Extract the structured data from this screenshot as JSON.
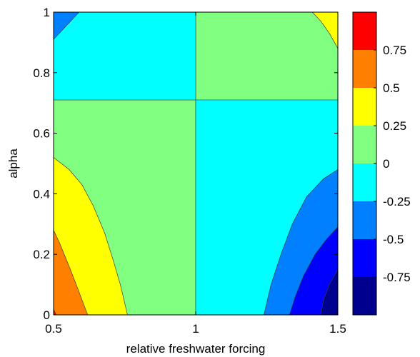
{
  "chart_data": {
    "type": "contour",
    "title": "",
    "xlabel": "relative freshwater forcing",
    "ylabel": "alpha",
    "xlim": [
      0.5,
      1.5
    ],
    "ylim": [
      0,
      1
    ],
    "xticks": [
      0.5,
      1,
      1.5
    ],
    "xtick_labels": [
      "0.5",
      "1",
      "1.5"
    ],
    "yticks": [
      0,
      0.2,
      0.4,
      0.6,
      0.8,
      1
    ],
    "ytick_labels": [
      "0",
      "0.2",
      "0.4",
      "0.6",
      "0.8",
      "1"
    ],
    "colorbar": {
      "levels": [
        -1.0,
        -0.75,
        -0.5,
        -0.25,
        0,
        0.25,
        0.5,
        0.75,
        1.0
      ],
      "tick_values": [
        -0.75,
        -0.5,
        -0.25,
        0,
        0.25,
        0.5,
        0.75
      ],
      "tick_labels": [
        "-0.75",
        "-0.5",
        "-0.25",
        "0",
        "0.25",
        "0.5",
        "0.75"
      ],
      "colors": [
        "#00008f",
        "#0000ff",
        "#0080ff",
        "#00ffff",
        "#80ff80",
        "#ffff00",
        "#ff8000",
        "#ff0000"
      ]
    },
    "regions": [
      {
        "level_range": [
          0.75,
          1.0
        ],
        "color": "#ff0000",
        "polygon": [
          [
            0.5,
            0
          ],
          [
            0.5,
            0.02
          ],
          [
            0.509,
            0
          ]
        ]
      },
      {
        "level_range": [
          0.5,
          0.75
        ],
        "color": "#ff8000",
        "polygon": [
          [
            0.5,
            0.28
          ],
          [
            0.52,
            0.24
          ],
          [
            0.555,
            0.16
          ],
          [
            0.58,
            0.1
          ],
          [
            0.6,
            0.05
          ],
          [
            0.62,
            0
          ],
          [
            0.509,
            0
          ],
          [
            0.5,
            0.02
          ]
        ]
      },
      {
        "level_range": [
          0.25,
          0.5
        ],
        "color": "#ffff00",
        "polygon": [
          [
            0.5,
            0.52
          ],
          [
            0.555,
            0.48
          ],
          [
            0.6,
            0.43
          ],
          [
            0.64,
            0.36
          ],
          [
            0.68,
            0.27
          ],
          [
            0.71,
            0.18
          ],
          [
            0.735,
            0.1
          ],
          [
            0.76,
            0
          ],
          [
            0.62,
            0
          ],
          [
            0.6,
            0.05
          ],
          [
            0.58,
            0.1
          ],
          [
            0.555,
            0.16
          ],
          [
            0.52,
            0.24
          ],
          [
            0.5,
            0.28
          ]
        ]
      },
      {
        "level_range": [
          0.25,
          0.5
        ],
        "color": "#ffff00",
        "polygon": [
          [
            1.41,
            1
          ],
          [
            1.44,
            0.97
          ],
          [
            1.47,
            0.93
          ],
          [
            1.5,
            0.88
          ],
          [
            1.5,
            1
          ]
        ]
      },
      {
        "level_range": [
          0.0,
          0.25
        ],
        "color": "#80ff80",
        "polygon": [
          [
            0.5,
            0.71
          ],
          [
            0.5,
            0.52
          ],
          [
            0.555,
            0.48
          ],
          [
            0.6,
            0.43
          ],
          [
            0.64,
            0.36
          ],
          [
            0.68,
            0.27
          ],
          [
            0.71,
            0.18
          ],
          [
            0.735,
            0.1
          ],
          [
            0.76,
            0
          ],
          [
            1,
            0
          ],
          [
            1,
            0.71
          ]
        ]
      },
      {
        "level_range": [
          0.0,
          0.25
        ],
        "color": "#80ff80",
        "polygon": [
          [
            1,
            1
          ],
          [
            1,
            0.71
          ],
          [
            1.5,
            0.71
          ],
          [
            1.5,
            0.88
          ],
          [
            1.47,
            0.93
          ],
          [
            1.44,
            0.97
          ],
          [
            1.41,
            1
          ]
        ]
      },
      {
        "level_range": [
          -0.25,
          0.0
        ],
        "color": "#00ffff",
        "polygon": [
          [
            0.5,
            0.71
          ],
          [
            0.5,
            0.91
          ],
          [
            0.54,
            0.95
          ],
          [
            0.59,
            1
          ],
          [
            1,
            1
          ],
          [
            1,
            0.71
          ]
        ]
      },
      {
        "level_range": [
          -0.25,
          0.0
        ],
        "color": "#00ffff",
        "polygon": [
          [
            1,
            0.71
          ],
          [
            1,
            0
          ],
          [
            1.24,
            0
          ],
          [
            1.265,
            0.1
          ],
          [
            1.3,
            0.2
          ],
          [
            1.34,
            0.3
          ],
          [
            1.39,
            0.39
          ],
          [
            1.45,
            0.45
          ],
          [
            1.5,
            0.48
          ],
          [
            1.5,
            0.71
          ]
        ]
      },
      {
        "level_range": [
          -0.5,
          -0.25
        ],
        "color": "#0080ff",
        "polygon": [
          [
            0.5,
            1
          ],
          [
            0.5,
            0.91
          ],
          [
            0.54,
            0.95
          ],
          [
            0.59,
            1
          ]
        ]
      },
      {
        "level_range": [
          -0.5,
          -0.25
        ],
        "color": "#0080ff",
        "polygon": [
          [
            1.24,
            0
          ],
          [
            1.265,
            0.1
          ],
          [
            1.3,
            0.2
          ],
          [
            1.34,
            0.3
          ],
          [
            1.39,
            0.39
          ],
          [
            1.45,
            0.45
          ],
          [
            1.5,
            0.48
          ],
          [
            1.5,
            0.29
          ],
          [
            1.46,
            0.25
          ],
          [
            1.42,
            0.2
          ],
          [
            1.38,
            0.13
          ],
          [
            1.35,
            0.06
          ],
          [
            1.33,
            0
          ]
        ]
      },
      {
        "level_range": [
          -0.75,
          -0.5
        ],
        "color": "#0000ff",
        "polygon": [
          [
            1.33,
            0
          ],
          [
            1.35,
            0.06
          ],
          [
            1.38,
            0.13
          ],
          [
            1.42,
            0.2
          ],
          [
            1.46,
            0.25
          ],
          [
            1.5,
            0.29
          ],
          [
            1.5,
            0.15
          ],
          [
            1.47,
            0.1
          ],
          [
            1.45,
            0.05
          ],
          [
            1.44,
            0
          ]
        ]
      },
      {
        "level_range": [
          -1.0,
          -0.75
        ],
        "color": "#00008f",
        "polygon": [
          [
            1.44,
            0
          ],
          [
            1.45,
            0.05
          ],
          [
            1.47,
            0.1
          ],
          [
            1.5,
            0.15
          ],
          [
            1.5,
            0
          ]
        ]
      }
    ]
  }
}
